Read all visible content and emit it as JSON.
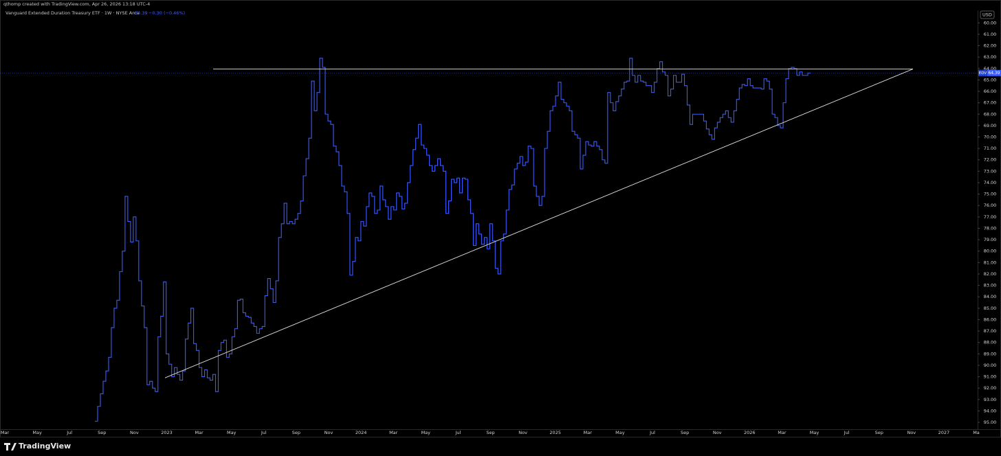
{
  "header": {
    "credit": "qthomp created with TradingView.com, Apr 26, 2026 13:18 UTC-4",
    "instrument": "Vanguard Extended Duration Treasury ETF · 1W · NYSE Arca",
    "price_change": "−0.30 (−0.46%)",
    "currency": "USD"
  },
  "footer": {
    "brand": "TradingView"
  },
  "chart_data": {
    "type": "step",
    "inverted": true,
    "grid": false,
    "time_axis_labels": [
      "Mar",
      "May",
      "Jul",
      "Sep",
      "Nov",
      "2023",
      "Mar",
      "May",
      "Jul",
      "Sep",
      "Nov",
      "2024",
      "Mar",
      "May",
      "Jul",
      "Sep",
      "Nov",
      "2025",
      "Mar",
      "May",
      "Jul",
      "Sep",
      "Nov",
      "2026",
      "Mar",
      "May",
      "Jul",
      "Sep",
      "Nov",
      "2027",
      "Ma"
    ],
    "series": [
      {
        "name": "EDV",
        "color": "#3a5cff",
        "values": [
          94.9,
          93.6,
          92.5,
          91.4,
          90.5,
          89.3,
          86.7,
          85.0,
          84.3,
          81.8,
          80.0,
          75.2,
          77.4,
          79.2,
          77.0,
          79.1,
          82.6,
          84.8,
          86.7,
          91.7,
          91.4,
          92.0,
          92.3,
          87.5,
          85.7,
          82.7,
          89.0,
          89.9,
          91.0,
          90.2,
          90.8,
          91.3,
          90.5,
          87.7,
          86.3,
          85.0,
          88.1,
          88.7,
          90.2,
          91.0,
          90.4,
          91.1,
          91.3,
          90.8,
          92.3,
          88.7,
          88.0,
          87.8,
          89.3,
          89.0,
          87.5,
          86.8,
          84.3,
          84.2,
          85.4,
          85.7,
          85.8,
          86.3,
          86.6,
          87.2,
          86.8,
          86.6,
          83.9,
          82.4,
          83.3,
          84.5,
          82.6,
          78.8,
          77.6,
          75.8,
          77.6,
          77.4,
          77.6,
          77.2,
          76.7,
          75.6,
          73.4,
          71.9,
          70.1,
          65.1,
          67.7,
          66.1,
          63.1,
          63.9,
          68.0,
          68.6,
          68.9,
          70.8,
          71.3,
          72.5,
          74.3,
          74.8,
          76.7,
          82.1,
          80.9,
          78.8,
          79.1,
          77.4,
          77.8,
          76.1,
          74.9,
          75.2,
          76.7,
          76.4,
          74.3,
          75.5,
          76.1,
          77.2,
          76.1,
          76.4,
          74.9,
          75.2,
          76.3,
          75.8,
          74.0,
          72.5,
          71.1,
          70.1,
          68.9,
          70.7,
          71.0,
          71.6,
          72.5,
          73.0,
          72.5,
          71.9,
          72.5,
          73.0,
          76.7,
          75.6,
          73.7,
          74.0,
          73.6,
          74.9,
          73.6,
          73.7,
          75.5,
          76.7,
          79.5,
          77.6,
          78.5,
          79.4,
          78.8,
          79.8,
          77.6,
          79.1,
          81.5,
          82.0,
          79.1,
          78.5,
          76.4,
          74.6,
          74.2,
          72.8,
          72.3,
          71.7,
          72.5,
          72.2,
          70.8,
          71.0,
          74.3,
          75.2,
          76.0,
          75.2,
          71.0,
          69.5,
          67.7,
          67.3,
          66.4,
          65.2,
          66.7,
          67.0,
          67.3,
          67.7,
          69.5,
          69.8,
          70.1,
          72.8,
          71.6,
          70.4,
          70.7,
          70.8,
          70.4,
          70.8,
          71.1,
          72.0,
          72.3,
          66.1,
          67.0,
          67.7,
          66.9,
          66.4,
          65.8,
          65.2,
          65.1,
          63.1,
          64.6,
          65.2,
          64.6,
          65.1,
          65.2,
          65.5,
          65.5,
          66.1,
          65.2,
          64.0,
          63.4,
          64.3,
          64.6,
          66.4,
          65.8,
          64.6,
          65.2,
          65.2,
          64.5,
          65.5,
          67.2,
          68.9,
          68.0,
          68.0,
          68.0,
          68.0,
          68.6,
          69.3,
          69.8,
          70.2,
          69.2,
          68.7,
          68.3,
          68.0,
          67.7,
          68.3,
          68.7,
          67.7,
          66.7,
          65.7,
          65.4,
          65.5,
          64.9,
          65.5,
          65.7,
          65.7,
          65.7,
          65.8,
          64.9,
          65.1,
          65.8,
          68.0,
          68.3,
          69.0,
          69.2,
          67.0,
          64.9,
          64.0,
          63.9,
          64.0,
          64.6,
          64.3,
          64.6,
          64.6,
          64.39
        ]
      }
    ],
    "trendlines": [
      {
        "from": 64.04,
        "to": 64.04,
        "color": "#e0e0e0"
      },
      {
        "from": 91.1,
        "to": 64.04,
        "color": "#e0e0e0"
      }
    ],
    "ylim": [
      58.9,
      95.6
    ],
    "yticks": [
      {
        "value": 60,
        "label": "60.00"
      },
      {
        "value": 61,
        "label": "61.00"
      },
      {
        "value": 62,
        "label": "62.00"
      },
      {
        "value": 63,
        "label": "63.00"
      },
      {
        "value": 64,
        "label": "64.00"
      },
      {
        "value": 65,
        "label": "65.00"
      },
      {
        "value": 66,
        "label": "66.00"
      },
      {
        "value": 67,
        "label": "67.00"
      },
      {
        "value": 68,
        "label": "68.00"
      },
      {
        "value": 69,
        "label": "69.00"
      },
      {
        "value": 70,
        "label": "70.00"
      },
      {
        "value": 71,
        "label": "71.00"
      },
      {
        "value": 72,
        "label": "72.00"
      },
      {
        "value": 73,
        "label": "73.00"
      },
      {
        "value": 74,
        "label": "74.00"
      },
      {
        "value": 75,
        "label": "75.00"
      },
      {
        "value": 76,
        "label": "76.00"
      },
      {
        "value": 77,
        "label": "77.00"
      },
      {
        "value": 78,
        "label": "78.00"
      },
      {
        "value": 79,
        "label": "79.00"
      },
      {
        "value": 80,
        "label": "80.00"
      },
      {
        "value": 81,
        "label": "81.00"
      },
      {
        "value": 82,
        "label": "82.00"
      },
      {
        "value": 83,
        "label": "83.00"
      },
      {
        "value": 84,
        "label": "84.00"
      },
      {
        "value": 85,
        "label": "85.00"
      },
      {
        "value": 86,
        "label": "86.00"
      },
      {
        "value": 87,
        "label": "87.00"
      },
      {
        "value": 88,
        "label": "88.00"
      },
      {
        "value": 89,
        "label": "89.00"
      },
      {
        "value": 90,
        "label": "90.00"
      },
      {
        "value": 91,
        "label": "91.00"
      },
      {
        "value": 92,
        "label": "92.00"
      },
      {
        "value": 93,
        "label": "93.00"
      },
      {
        "value": 94,
        "label": "94.00"
      },
      {
        "value": 95,
        "label": "95.00"
      }
    ]
  }
}
